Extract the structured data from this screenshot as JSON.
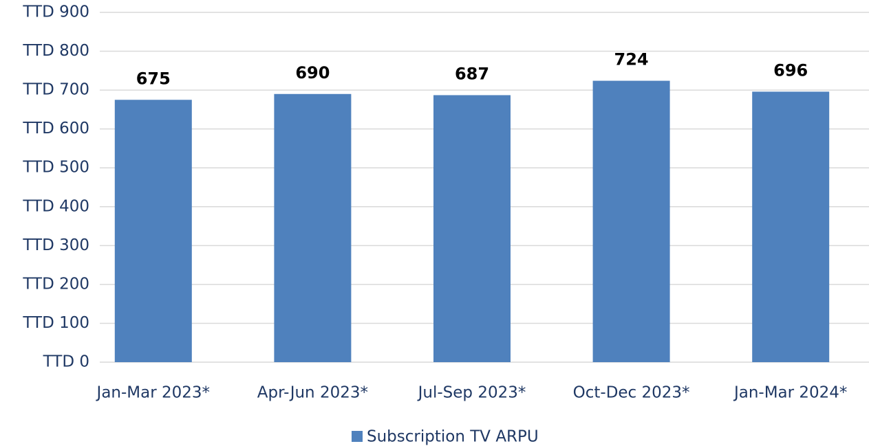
{
  "chart_data": {
    "type": "bar",
    "categories": [
      "Jan-Mar 2023*",
      "Apr-Jun 2023*",
      "Jul-Sep 2023*",
      "Oct-Dec 2023*",
      "Jan-Mar 2024*"
    ],
    "series": [
      {
        "name": "Subscription TV ARPU",
        "color": "#4f81bd",
        "values": [
          675,
          690,
          687,
          724,
          696
        ]
      }
    ],
    "ylim": [
      0,
      900
    ],
    "yticks": [
      {
        "value": 0,
        "label": "TTD 0"
      },
      {
        "value": 100,
        "label": "TTD 100"
      },
      {
        "value": 200,
        "label": "TTD 200"
      },
      {
        "value": 300,
        "label": "TTD 300"
      },
      {
        "value": 400,
        "label": "TTD 400"
      },
      {
        "value": 500,
        "label": "TTD 500"
      },
      {
        "value": 600,
        "label": "TTD 600"
      },
      {
        "value": 700,
        "label": "TTD 700"
      },
      {
        "value": 800,
        "label": "TTD 800"
      },
      {
        "value": 900,
        "label": "TTD 900"
      }
    ],
    "grid": true,
    "legend": "bottom"
  }
}
